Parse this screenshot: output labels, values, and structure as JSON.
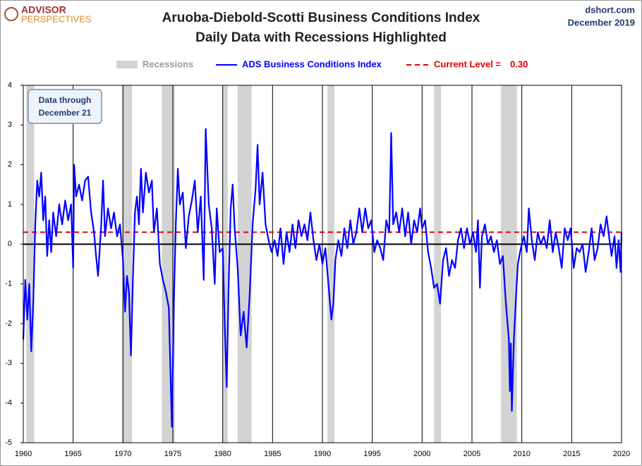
{
  "chart_data": {
    "type": "line",
    "logo": [
      "ADVISOR",
      "PERSPECTIVES"
    ],
    "source": "dshort.com",
    "date": "December 2019",
    "title": "Aruoba-Diebold-Scotti Business Conditions Index",
    "subtitle": "Daily Data with Recessions Highlighted",
    "annotation": [
      "Data through",
      "December 21"
    ],
    "recessions": {
      "name": "Recessions",
      "color": "#d3d3d3",
      "spans": [
        [
          1960.3,
          1961.1
        ],
        [
          1969.9,
          1970.9
        ],
        [
          1973.9,
          1975.2
        ],
        [
          1980.0,
          1980.5
        ],
        [
          1981.5,
          1982.9
        ],
        [
          1990.5,
          1991.2
        ],
        [
          2001.2,
          2001.9
        ],
        [
          2007.9,
          2009.5
        ]
      ]
    },
    "current_level": {
      "label": "Current Level =",
      "value": 0.3,
      "value_label": "0.30",
      "color": "#e00000"
    },
    "x": [
      1960.0,
      1960.2,
      1960.4,
      1960.6,
      1960.8,
      1961.0,
      1961.2,
      1961.4,
      1961.6,
      1961.8,
      1962.0,
      1962.2,
      1962.4,
      1962.6,
      1962.8,
      1963.0,
      1963.3,
      1963.6,
      1963.9,
      1964.2,
      1964.5,
      1964.8,
      1965.0,
      1965.1,
      1965.3,
      1965.6,
      1965.9,
      1966.2,
      1966.5,
      1966.8,
      1967.1,
      1967.3,
      1967.5,
      1967.8,
      1968.0,
      1968.2,
      1968.5,
      1968.8,
      1969.1,
      1969.4,
      1969.7,
      1970.0,
      1970.2,
      1970.4,
      1970.6,
      1970.8,
      1971.0,
      1971.2,
      1971.4,
      1971.6,
      1971.8,
      1972.0,
      1972.3,
      1972.6,
      1972.9,
      1973.1,
      1973.4,
      1973.7,
      1974.0,
      1974.3,
      1974.6,
      1974.9,
      1975.1,
      1975.3,
      1975.5,
      1975.7,
      1976.0,
      1976.3,
      1976.6,
      1976.9,
      1977.2,
      1977.5,
      1977.8,
      1978.1,
      1978.3,
      1978.6,
      1978.9,
      1979.2,
      1979.4,
      1979.7,
      1980.0,
      1980.2,
      1980.4,
      1980.6,
      1980.8,
      1981.0,
      1981.2,
      1981.5,
      1981.8,
      1982.1,
      1982.4,
      1982.7,
      1983.0,
      1983.3,
      1983.5,
      1983.7,
      1984.0,
      1984.3,
      1984.6,
      1984.9,
      1985.2,
      1985.5,
      1985.8,
      1986.1,
      1986.4,
      1986.7,
      1987.0,
      1987.3,
      1987.6,
      1987.9,
      1988.2,
      1988.5,
      1988.8,
      1989.1,
      1989.4,
      1989.7,
      1990.0,
      1990.3,
      1990.6,
      1990.9,
      1991.1,
      1991.3,
      1991.6,
      1991.9,
      1992.2,
      1992.5,
      1992.8,
      1993.1,
      1993.4,
      1993.7,
      1994.0,
      1994.3,
      1994.6,
      1994.9,
      1995.2,
      1995.5,
      1995.8,
      1996.1,
      1996.4,
      1996.7,
      1996.9,
      1997.1,
      1997.4,
      1997.7,
      1998.0,
      1998.3,
      1998.6,
      1998.9,
      1999.2,
      1999.5,
      1999.8,
      2000.0,
      2000.3,
      2000.6,
      2000.9,
      2001.2,
      2001.5,
      2001.8,
      2002.1,
      2002.4,
      2002.7,
      2003.0,
      2003.3,
      2003.6,
      2003.9,
      2004.2,
      2004.5,
      2004.8,
      2005.1,
      2005.4,
      2005.6,
      2005.8,
      2006.0,
      2006.3,
      2006.6,
      2006.9,
      2007.2,
      2007.5,
      2007.8,
      2008.1,
      2008.4,
      2008.7,
      2008.8,
      2008.9,
      2009.0,
      2009.2,
      2009.4,
      2009.6,
      2009.9,
      2010.2,
      2010.5,
      2010.7,
      2011.0,
      2011.3,
      2011.6,
      2011.9,
      2012.2,
      2012.5,
      2012.8,
      2013.1,
      2013.4,
      2013.7,
      2014.0,
      2014.3,
      2014.6,
      2014.9,
      2015.2,
      2015.5,
      2015.8,
      2016.1,
      2016.4,
      2016.7,
      2017.0,
      2017.3,
      2017.6,
      2017.9,
      2018.2,
      2018.5,
      2018.8,
      2019.0,
      2019.3,
      2019.5,
      2019.7,
      2019.9,
      2020.0
    ],
    "series": [
      {
        "name": "ADS Business Conditions Index",
        "color": "#0000ff",
        "values": [
          -2.4,
          -0.9,
          -1.9,
          -1.0,
          -2.7,
          -1.5,
          0.5,
          1.6,
          1.2,
          1.8,
          0.6,
          1.2,
          -0.3,
          0.6,
          -0.2,
          0.8,
          0.2,
          1.0,
          0.5,
          1.1,
          0.6,
          1.0,
          -0.6,
          2.0,
          1.2,
          1.5,
          1.1,
          1.6,
          1.7,
          0.8,
          0.3,
          -0.3,
          -0.8,
          0.4,
          1.6,
          0.2,
          0.9,
          0.4,
          0.8,
          0.2,
          0.5,
          -0.4,
          -1.7,
          -0.8,
          -1.2,
          -2.8,
          -0.8,
          0.8,
          1.2,
          0.5,
          1.9,
          0.8,
          1.8,
          1.3,
          1.6,
          0.3,
          0.9,
          -0.5,
          -0.9,
          -1.2,
          -1.6,
          -4.6,
          -1.5,
          0.5,
          1.9,
          1.0,
          1.3,
          -0.1,
          0.7,
          1.1,
          1.6,
          0.3,
          1.2,
          -0.9,
          2.9,
          1.0,
          0.4,
          -1.0,
          0.9,
          -0.2,
          -0.1,
          -2.0,
          -3.6,
          -1.0,
          0.9,
          1.5,
          0.4,
          -0.6,
          -2.3,
          -1.7,
          -2.6,
          -1.3,
          0.5,
          1.4,
          2.5,
          1.0,
          1.8,
          0.5,
          0.1,
          -0.2,
          0.1,
          -0.3,
          0.4,
          -0.5,
          0.3,
          -0.2,
          0.5,
          -0.1,
          0.6,
          0.2,
          0.5,
          0.1,
          0.8,
          0.1,
          -0.4,
          0.0,
          -0.5,
          -0.1,
          -1.0,
          -1.9,
          -1.5,
          -0.4,
          0.1,
          -0.3,
          0.4,
          -0.1,
          0.6,
          0.0,
          0.3,
          0.9,
          0.3,
          0.9,
          0.4,
          0.6,
          -0.2,
          0.1,
          -0.1,
          -0.4,
          0.6,
          0.3,
          2.8,
          0.5,
          0.8,
          0.3,
          0.9,
          0.2,
          0.8,
          0.0,
          0.6,
          0.3,
          0.9,
          0.4,
          0.6,
          -0.2,
          -0.6,
          -1.1,
          -1.0,
          -1.5,
          -0.4,
          -0.1,
          -0.8,
          -0.4,
          -0.6,
          0.1,
          0.4,
          -0.1,
          0.4,
          0.0,
          0.3,
          -0.2,
          0.6,
          -1.1,
          0.2,
          0.5,
          0.0,
          0.2,
          -0.2,
          0.1,
          -0.5,
          -0.3,
          -1.5,
          -2.4,
          -3.7,
          -2.5,
          -4.2,
          -2.4,
          -1.4,
          -0.5,
          -0.1,
          0.2,
          -0.2,
          0.9,
          0.1,
          -0.4,
          0.3,
          0.0,
          0.2,
          -0.1,
          0.6,
          -0.2,
          0.3,
          -0.1,
          -0.6,
          0.4,
          0.1,
          0.4,
          -0.6,
          -0.1,
          -0.2,
          0.0,
          -0.7,
          -0.2,
          0.4,
          -0.4,
          -0.1,
          0.5,
          0.2,
          0.7,
          0.1,
          -0.3,
          0.2,
          -0.6,
          0.1,
          -0.7,
          0.3
        ]
      }
    ],
    "xlim": [
      1960,
      2020
    ],
    "xticks": [
      1960,
      1965,
      1970,
      1975,
      1980,
      1985,
      1990,
      1995,
      2000,
      2005,
      2010,
      2015,
      2020
    ],
    "ylim": [
      -5,
      4
    ],
    "yticks": [
      4,
      3,
      2,
      1,
      0,
      -1,
      -2,
      -3,
      -4,
      -5
    ],
    "grid": true
  }
}
